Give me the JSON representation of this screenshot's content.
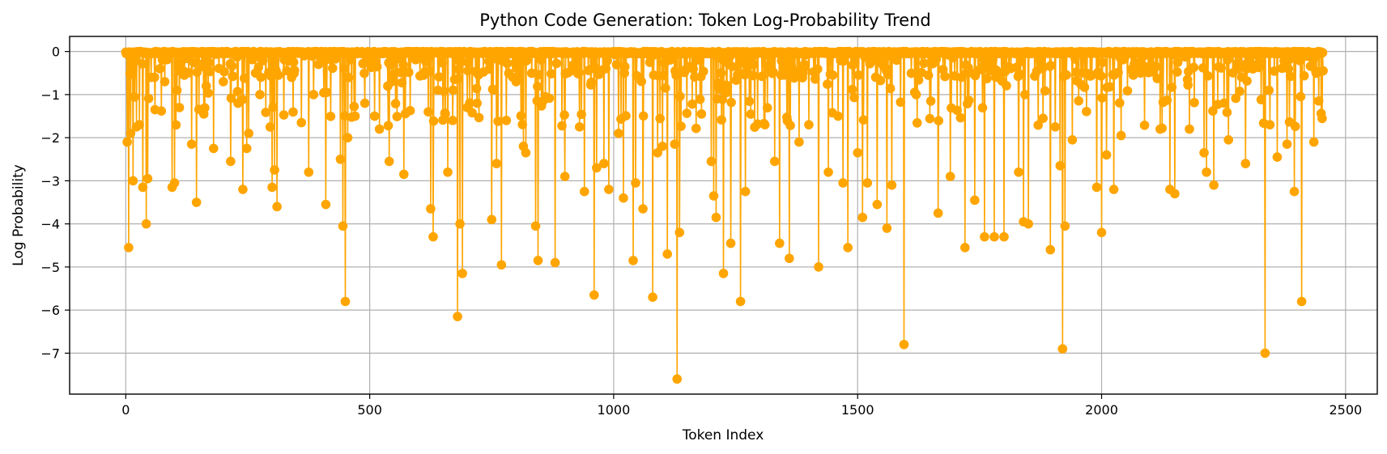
{
  "chart_data": {
    "type": "line",
    "title": "Python Code Generation: Token Log-Probability Trend",
    "xlabel": "Token Index",
    "ylabel": "Log Probability",
    "xlim": [
      -115,
      2565
    ],
    "ylim": [
      -7.95,
      0.35
    ],
    "xticks": [
      0,
      500,
      1000,
      1500,
      2000,
      2500
    ],
    "yticks": [
      0,
      -1,
      -2,
      -3,
      -4,
      -5,
      -6,
      -7
    ],
    "grid": true,
    "legend": "none",
    "color": "#FFA500",
    "n_tokens": 2455,
    "baseline": 0,
    "series": [
      {
        "x": [
          3,
          6,
          10,
          15,
          22,
          28,
          35,
          42,
          45,
          52,
          60,
          70,
          80,
          95,
          100,
          105,
          110,
          120,
          135,
          145,
          160,
          165,
          180,
          200,
          215,
          230,
          240,
          248,
          252,
          275,
          300,
          305,
          310,
          340,
          360,
          375,
          385,
          410,
          440,
          445,
          450,
          455,
          470,
          490,
          510,
          520,
          540,
          545,
          570,
          620,
          625,
          630,
          640,
          660,
          670,
          680,
          685,
          690,
          700,
          720,
          750,
          760,
          770,
          780,
          800,
          815,
          820,
          840,
          845,
          860,
          880,
          900,
          930,
          940,
          960,
          965,
          980,
          990,
          1010,
          1020,
          1040,
          1045,
          1060,
          1080,
          1090,
          1100,
          1110,
          1125,
          1130,
          1135,
          1180,
          1200,
          1205,
          1210,
          1225,
          1240,
          1260,
          1270,
          1310,
          1330,
          1340,
          1360,
          1380,
          1400,
          1420,
          1440,
          1460,
          1470,
          1480,
          1500,
          1510,
          1520,
          1540,
          1560,
          1570,
          1595,
          1620,
          1650,
          1665,
          1690,
          1720,
          1740,
          1760,
          1780,
          1800,
          1830,
          1840,
          1850,
          1880,
          1895,
          1905,
          1915,
          1920,
          1925,
          1940,
          1980,
          1990,
          2000,
          2010,
          2025,
          2040,
          2080,
          2120,
          2140,
          2150,
          2180,
          2210,
          2215,
          2230,
          2260,
          2295,
          2335,
          2345,
          2360,
          2380,
          2395,
          2410,
          2435
        ],
        "y": [
          -2.1,
          -4.55,
          -1.9,
          -3.0,
          -1.75,
          -1.7,
          -3.15,
          -4.0,
          -2.95,
          -0.6,
          -1.35,
          -0.4,
          -0.7,
          -3.15,
          -3.05,
          -0.9,
          -1.3,
          -0.55,
          -2.15,
          -3.5,
          -1.45,
          -0.8,
          -2.25,
          -0.7,
          -2.55,
          -1.2,
          -3.2,
          -2.25,
          -1.9,
          -1.0,
          -3.15,
          -2.75,
          -3.6,
          -0.6,
          -1.65,
          -2.8,
          -1.0,
          -3.55,
          -2.5,
          -4.05,
          -5.8,
          -2.0,
          -1.5,
          -1.2,
          -1.5,
          -1.8,
          -2.55,
          -0.7,
          -2.85,
          -1.4,
          -3.65,
          -4.3,
          -0.9,
          -2.8,
          -1.6,
          -6.15,
          -4.0,
          -5.15,
          -1.3,
          -1.2,
          -3.9,
          -2.6,
          -4.95,
          -1.6,
          -0.7,
          -2.2,
          -2.35,
          -4.05,
          -4.85,
          -1.05,
          -4.9,
          -2.9,
          -1.75,
          -3.25,
          -5.65,
          -2.7,
          -2.6,
          -3.2,
          -1.9,
          -3.4,
          -4.85,
          -3.05,
          -3.65,
          -5.7,
          -2.35,
          -2.2,
          -4.7,
          -2.15,
          -7.6,
          -4.2,
          -1.45,
          -2.55,
          -3.35,
          -3.85,
          -5.15,
          -4.45,
          -5.8,
          -3.25,
          -1.7,
          -2.55,
          -4.45,
          -4.8,
          -2.1,
          -1.7,
          -5.0,
          -2.8,
          -1.5,
          -3.05,
          -4.55,
          -2.35,
          -3.85,
          -3.05,
          -3.55,
          -4.1,
          -3.1,
          -6.8,
          -1.0,
          -1.15,
          -3.75,
          -2.9,
          -4.55,
          -3.45,
          -4.3,
          -4.3,
          -4.3,
          -2.8,
          -3.95,
          -4.0,
          -1.55,
          -4.6,
          -1.75,
          -2.65,
          -6.9,
          -4.05,
          -2.05,
          -0.55,
          -3.15,
          -4.2,
          -2.4,
          -3.2,
          -1.95,
          -0.5,
          -1.8,
          -3.2,
          -3.3,
          -1.8,
          -2.35,
          -2.8,
          -3.1,
          -2.05,
          -2.6,
          -7.0,
          -1.7,
          -2.45,
          -2.15,
          -3.25,
          -5.8,
          -2.1
        ]
      }
    ]
  }
}
